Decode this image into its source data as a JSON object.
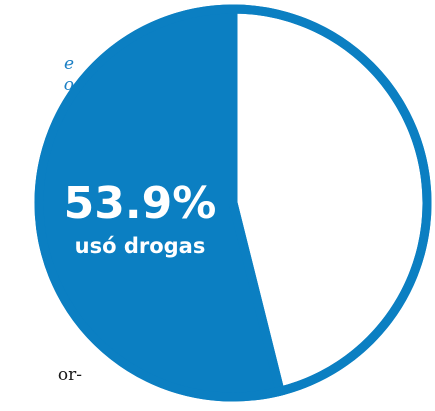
{
  "page": {
    "fragment_top_lines": [
      "e",
      "o"
    ],
    "fragment_bottom": "or-"
  },
  "chart_data": {
    "type": "pie",
    "slices": [
      {
        "label": "usó drogas",
        "value": 53.9,
        "display": "53.9%",
        "color": "#0b7fc2"
      },
      {
        "label": "",
        "value": 46.1,
        "display": "",
        "color": "#ffffff"
      }
    ],
    "outline_color": "#0b7fc2",
    "label": {
      "value_text": "53.9%",
      "category_text": "usó drogas"
    }
  }
}
